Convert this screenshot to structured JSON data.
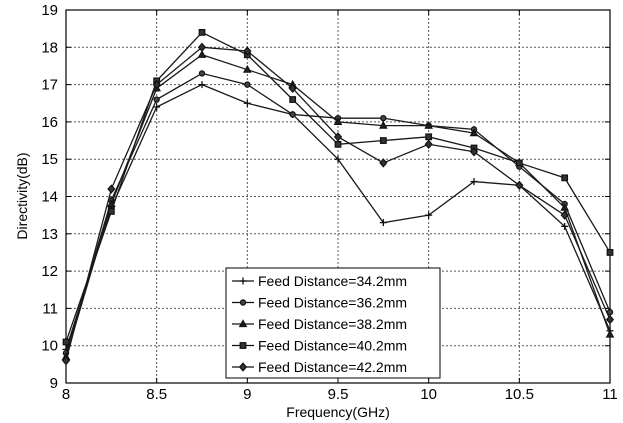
{
  "chart_data": {
    "type": "line",
    "xlabel": "Frequency(GHz)",
    "ylabel": "Directivity(dB)",
    "xlim": [
      8,
      11
    ],
    "ylim": [
      9,
      19
    ],
    "xticks": [
      8,
      8.5,
      9,
      9.5,
      10,
      10.5,
      11
    ],
    "xtick_labels": [
      "8",
      "8.5",
      "9",
      "9.5",
      "10",
      "10.5",
      "11"
    ],
    "yticks": [
      9,
      10,
      11,
      12,
      13,
      14,
      15,
      16,
      17,
      18,
      19
    ],
    "ytick_labels": [
      "9",
      "10",
      "11",
      "12",
      "13",
      "14",
      "15",
      "16",
      "17",
      "18",
      "19"
    ],
    "grid": true,
    "legend_position": "bottom-center",
    "x": [
      8,
      8.25,
      8.5,
      8.75,
      9,
      9.25,
      9.5,
      9.75,
      10,
      10.25,
      10.5,
      10.75,
      11
    ],
    "series": [
      {
        "name": "Feed Distance=34.2mm",
        "marker": "plus",
        "values": [
          9.9,
          13.7,
          16.4,
          17.0,
          16.5,
          16.2,
          15.0,
          13.3,
          13.5,
          14.4,
          14.3,
          13.2,
          10.4
        ]
      },
      {
        "name": "Feed Distance=36.2mm",
        "marker": "circle",
        "values": [
          9.8,
          13.9,
          16.6,
          17.3,
          17.0,
          16.2,
          16.1,
          16.1,
          15.9,
          15.8,
          14.8,
          13.8,
          10.9
        ]
      },
      {
        "name": "Feed Distance=38.2mm",
        "marker": "triangle",
        "values": [
          9.7,
          13.8,
          16.9,
          17.8,
          17.4,
          17.0,
          16.0,
          15.9,
          15.9,
          15.7,
          14.9,
          13.7,
          10.3
        ]
      },
      {
        "name": "Feed Distance=40.2mm",
        "marker": "square",
        "values": [
          10.1,
          13.6,
          17.1,
          18.4,
          17.8,
          16.6,
          15.4,
          15.5,
          15.6,
          15.3,
          14.9,
          14.5,
          12.5
        ]
      },
      {
        "name": "Feed Distance=42.2mm",
        "marker": "diamond",
        "values": [
          9.6,
          14.2,
          17.0,
          18.0,
          17.9,
          16.9,
          15.6,
          14.9,
          15.4,
          15.2,
          14.3,
          13.5,
          10.7
        ]
      }
    ]
  }
}
